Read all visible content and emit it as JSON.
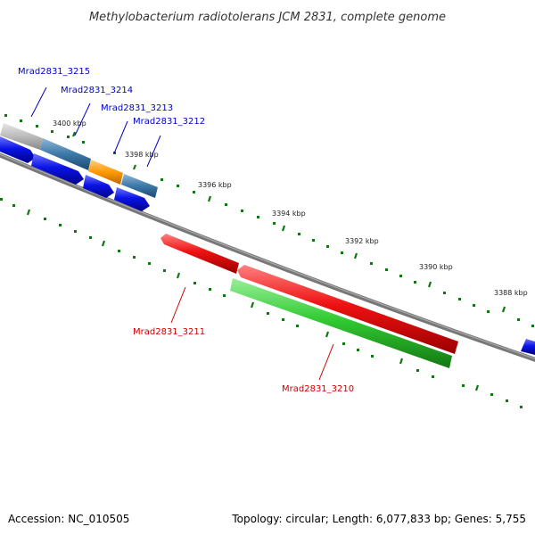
{
  "title": "Methylobacterium radiotolerans JCM 2831, complete genome",
  "footer": {
    "accession": "Accession: NC_010505",
    "summary": "Topology: circular; Length: 6,077,833 bp; Genes: 5,755"
  },
  "scale_labels": [
    "3400 kbp",
    "3398 kbp",
    "3396 kbp",
    "3394 kbp",
    "3392 kbp",
    "3390 kbp",
    "3388 kbp"
  ],
  "gene_labels": {
    "g3215": "Mrad2831_3215",
    "g3214": "Mrad2831_3214",
    "g3213": "Mrad2831_3213",
    "g3212": "Mrad2831_3212",
    "g3211": "Mrad2831_3211",
    "g3210": "Mrad2831_3210"
  },
  "colors": {
    "backbone": "#777777",
    "forward_label": "#0000cc",
    "reverse_label": "#cc0000",
    "cds_blue": "#0a14e6",
    "cds_red": "#ee1111",
    "cds_green": "#33cc33",
    "cog_steel": "#3c78a8",
    "cog_orange": "#ff9900",
    "cog_gray": "#bbbbbb",
    "tick_green": "#117711"
  }
}
